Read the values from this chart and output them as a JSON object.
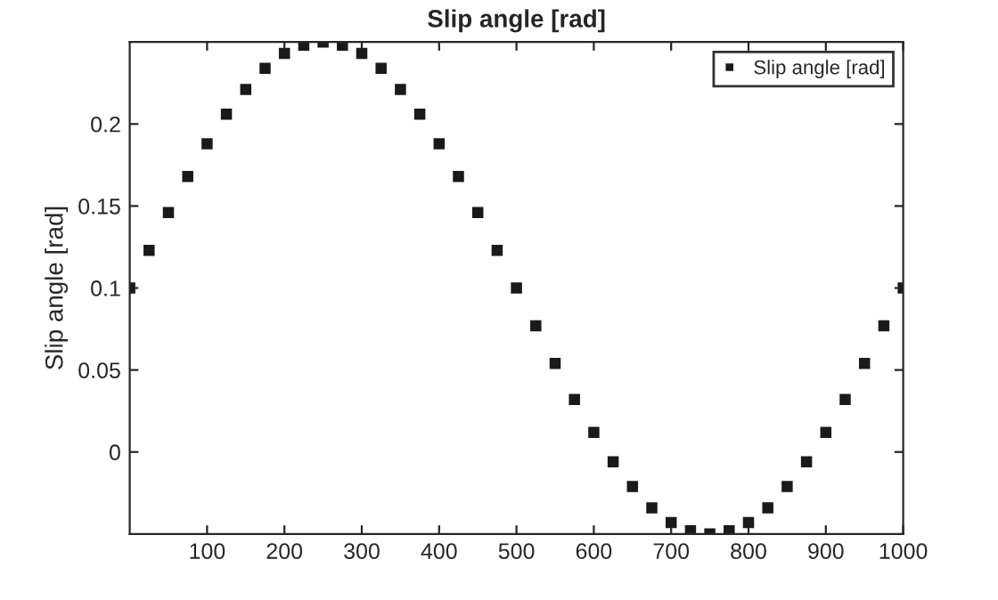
{
  "chart_data": {
    "type": "scatter",
    "title": "Slip angle [rad]",
    "ylabel": "Slip angle [rad]",
    "x": [
      0,
      25,
      50,
      75,
      100,
      125,
      150,
      175,
      200,
      225,
      250,
      275,
      300,
      325,
      350,
      375,
      400,
      425,
      450,
      475,
      500,
      525,
      550,
      575,
      600,
      625,
      650,
      675,
      700,
      725,
      750,
      775,
      800,
      825,
      850,
      875,
      900,
      925,
      950,
      975,
      1000
    ],
    "series": [
      {
        "name": "Slip angle [rad]",
        "color": "#1a1a1a",
        "values": [
          0.1,
          0.123,
          0.146,
          0.168,
          0.188,
          0.206,
          0.221,
          0.234,
          0.243,
          0.248,
          0.25,
          0.248,
          0.243,
          0.234,
          0.221,
          0.206,
          0.188,
          0.168,
          0.146,
          0.123,
          0.1,
          0.077,
          0.054,
          0.032,
          0.012,
          -0.006,
          -0.021,
          -0.034,
          -0.043,
          -0.048,
          -0.05,
          -0.048,
          -0.043,
          -0.034,
          -0.021,
          -0.006,
          0.012,
          0.032,
          0.054,
          0.077,
          0.1
        ]
      }
    ],
    "xlim": [
      0,
      1000
    ],
    "xticks": [
      100,
      200,
      300,
      400,
      500,
      600,
      700,
      800,
      900,
      1000
    ],
    "ylim": [
      -0.05,
      0.25
    ],
    "yticks": [
      0,
      0.05,
      0.1,
      0.15,
      0.2
    ],
    "grid": false,
    "legend": "top right",
    "marker": "square"
  }
}
